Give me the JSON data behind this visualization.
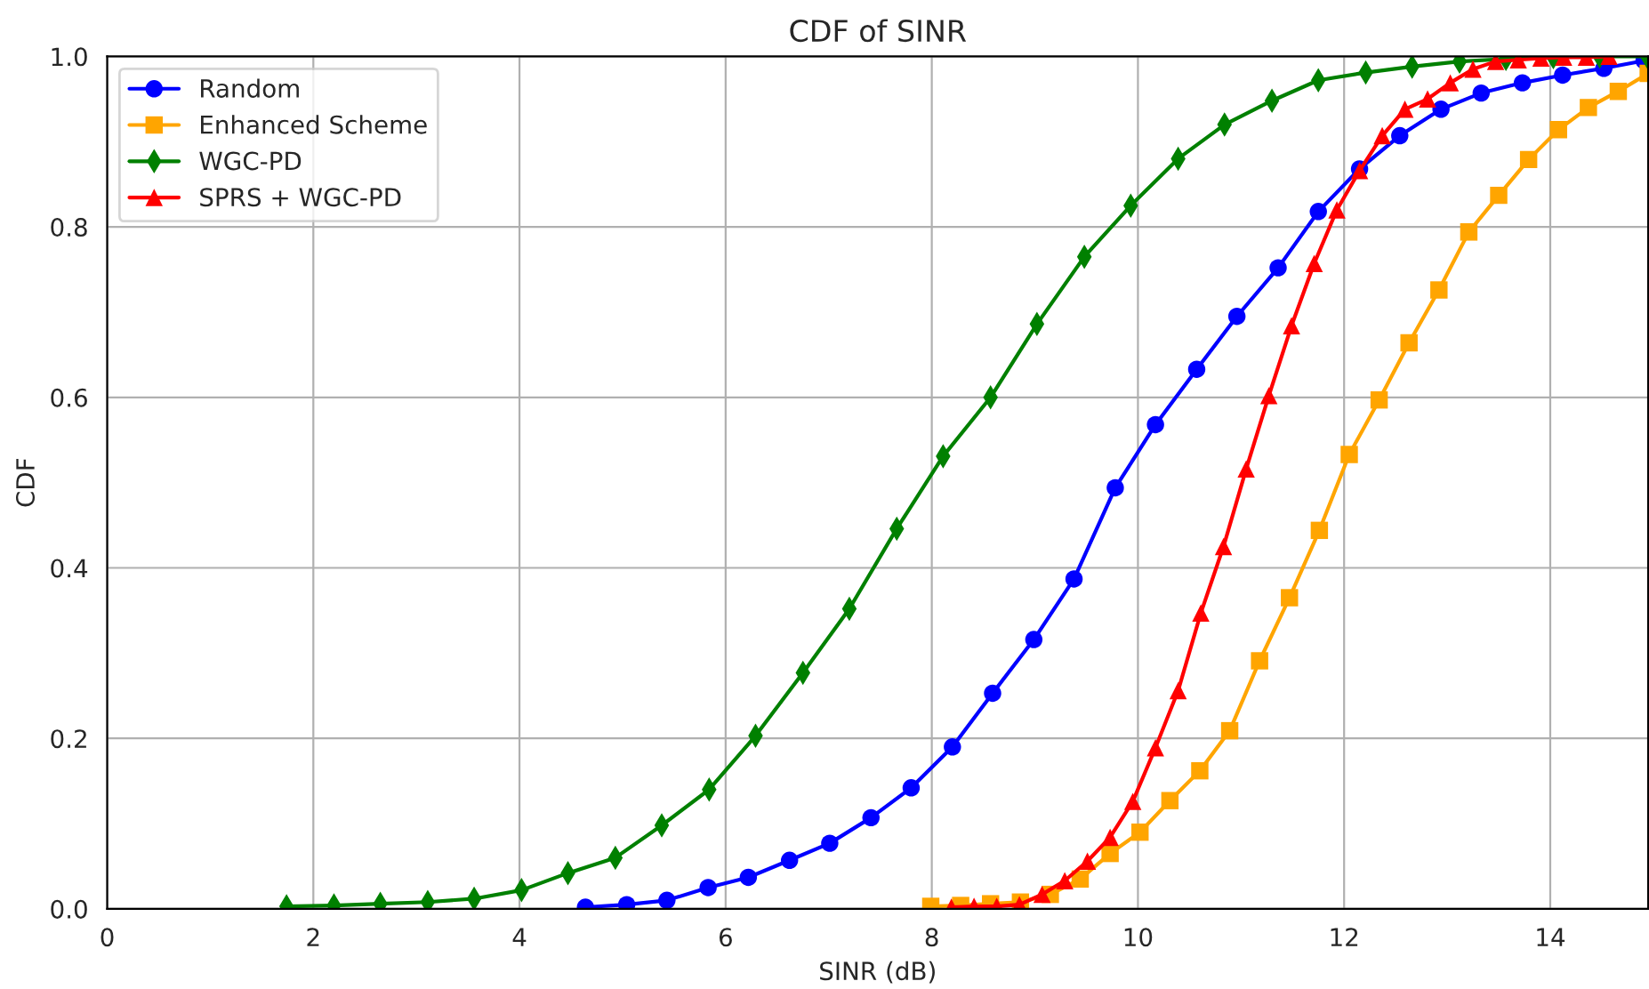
{
  "chart_data": {
    "type": "line",
    "title": "CDF of SINR",
    "xlabel": "SINR (dB)",
    "ylabel": "CDF",
    "xlim": [
      0,
      14.95
    ],
    "ylim": [
      0,
      1.0
    ],
    "xticks": [
      0,
      2,
      4,
      6,
      8,
      10,
      12,
      14
    ],
    "yticks": [
      {
        "value": 0,
        "label": "0.0"
      },
      0.2,
      0.4,
      0.6,
      0.8,
      {
        "value": 1,
        "label": "1.0"
      }
    ],
    "grid": true,
    "legend": "top left",
    "series": [
      {
        "name": "Random",
        "color": "#0000ff",
        "marker": "circle",
        "x": [
          4.64,
          5.04,
          5.43,
          5.83,
          6.22,
          6.62,
          7.01,
          7.41,
          7.8,
          8.2,
          8.59,
          8.99,
          9.38,
          9.78,
          10.17,
          10.57,
          10.96,
          11.36,
          11.75,
          12.15,
          12.54,
          12.94,
          13.33,
          13.73,
          14.12,
          14.52,
          14.91
        ],
        "values": [
          0.002,
          0.005,
          0.01,
          0.025,
          0.037,
          0.057,
          0.077,
          0.107,
          0.142,
          0.19,
          0.253,
          0.316,
          0.387,
          0.494,
          0.568,
          0.633,
          0.695,
          0.752,
          0.818,
          0.868,
          0.907,
          0.938,
          0.957,
          0.969,
          0.978,
          0.986,
          0.995
        ]
      },
      {
        "name": "Enhanced Scheme",
        "color": "#ffa500",
        "marker": "square",
        "x": [
          7.99,
          8.28,
          8.57,
          8.86,
          9.15,
          9.44,
          9.73,
          10.02,
          10.31,
          10.6,
          10.89,
          11.18,
          11.47,
          11.76,
          12.05,
          12.34,
          12.63,
          12.92,
          13.21,
          13.5,
          13.79,
          14.08,
          14.37,
          14.66,
          14.95
        ],
        "values": [
          0.003,
          0.004,
          0.006,
          0.008,
          0.017,
          0.035,
          0.065,
          0.09,
          0.127,
          0.162,
          0.209,
          0.291,
          0.365,
          0.444,
          0.533,
          0.597,
          0.664,
          0.726,
          0.794,
          0.837,
          0.879,
          0.914,
          0.94,
          0.959,
          0.98
        ]
      },
      {
        "name": "WGC-PD",
        "color": "#008000",
        "marker": "diamond",
        "x": [
          1.74,
          2.2,
          2.65,
          3.11,
          3.56,
          4.02,
          4.47,
          4.93,
          5.38,
          5.84,
          6.29,
          6.75,
          7.2,
          7.66,
          8.11,
          8.57,
          9.02,
          9.48,
          9.93,
          10.39,
          10.84,
          11.3,
          11.75,
          12.21,
          12.66,
          13.12,
          13.57,
          14.03,
          14.48,
          14.94
        ],
        "values": [
          0.003,
          0.004,
          0.006,
          0.008,
          0.012,
          0.022,
          0.042,
          0.06,
          0.098,
          0.14,
          0.203,
          0.277,
          0.352,
          0.446,
          0.531,
          0.6,
          0.686,
          0.765,
          0.825,
          0.88,
          0.92,
          0.948,
          0.972,
          0.981,
          0.988,
          0.994,
          0.997,
          0.999,
          1.0,
          1.0
        ]
      },
      {
        "name": "SPRS + WGC-PD",
        "color": "#ff0000",
        "marker": "triangle",
        "x": [
          8.19,
          8.41,
          8.63,
          8.85,
          9.07,
          9.29,
          9.51,
          9.73,
          9.95,
          10.17,
          10.39,
          10.61,
          10.83,
          11.05,
          11.27,
          11.49,
          11.71,
          11.93,
          12.15,
          12.37,
          12.59,
          12.81,
          13.03,
          13.25,
          13.47,
          13.69,
          13.91,
          14.13,
          14.35,
          14.57
        ],
        "values": [
          0.002,
          0.003,
          0.003,
          0.005,
          0.017,
          0.033,
          0.056,
          0.084,
          0.126,
          0.189,
          0.256,
          0.347,
          0.425,
          0.516,
          0.602,
          0.684,
          0.757,
          0.82,
          0.866,
          0.907,
          0.938,
          0.95,
          0.969,
          0.985,
          0.994,
          0.996,
          0.998,
          0.999,
          0.999,
          1.0
        ]
      }
    ]
  }
}
